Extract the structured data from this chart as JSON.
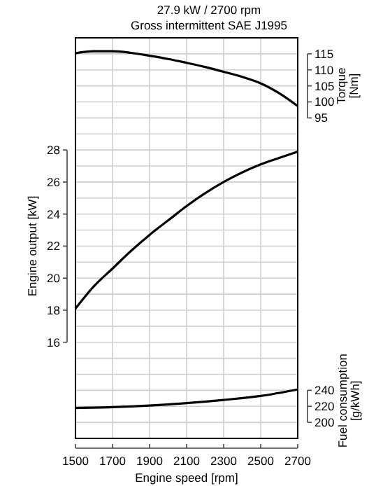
{
  "chart_data": {
    "type": "line",
    "title": "27.9 kW / 2700 rpm",
    "subtitle": "Gross intermittent SAE J1995",
    "xlabel": "Engine speed [rpm]",
    "ylabel": "Engine output [kW]",
    "y2label": "Torque [Nm]",
    "y3label": "Fuel consumption [g/kWh]",
    "x": [
      1500,
      1600,
      1700,
      1800,
      1900,
      2000,
      2100,
      2200,
      2300,
      2400,
      2500,
      2600,
      2700
    ],
    "series": [
      {
        "color": "#000000",
        "values": [
          18.1,
          19.5,
          20.6,
          21.7,
          22.7,
          23.6,
          24.5,
          25.3,
          26.0,
          26.6,
          27.1,
          27.5,
          27.9
        ]
      },
      {
        "color": "#000000",
        "axis": "y2",
        "values": [
          115.2,
          115.8,
          115.8,
          115.3,
          114.4,
          113.4,
          112.2,
          110.9,
          109.4,
          107.8,
          105.8,
          102.7,
          98.7
        ]
      },
      {
        "color": "#000000",
        "axis": "y3",
        "x": [
          1500,
          1700,
          1900,
          2100,
          2300,
          2500,
          2700
        ],
        "values": [
          218,
          219,
          221,
          224,
          228,
          233,
          241
        ]
      }
    ],
    "xlim": [
      1500,
      2700
    ],
    "xticks": [
      1500,
      1700,
      1900,
      2100,
      2300,
      2500,
      2700
    ],
    "ylim": [
      10,
      35
    ],
    "yticks": [
      16,
      18,
      20,
      22,
      24,
      26,
      28
    ],
    "y2lim": [
      -5,
      120
    ],
    "y2ticks": [
      95,
      100,
      105,
      110,
      115
    ],
    "y3lim": [
      180,
      680
    ],
    "y3ticks": [
      200,
      220,
      240
    ],
    "grid": true,
    "line_style": "solid"
  }
}
